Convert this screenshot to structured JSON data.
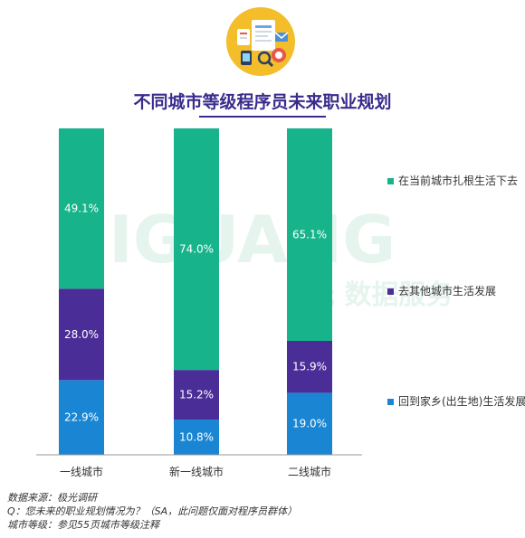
{
  "chart_data": {
    "type": "bar",
    "stacked": true,
    "title": "不同城市等级程序员未来职业规划",
    "categories": [
      "一线城市",
      "新一线城市",
      "二线城市"
    ],
    "series": [
      {
        "name": "回到家乡(出生地)生活发展",
        "values": [
          22.9,
          10.8,
          19.0
        ],
        "color": "#1a86d3"
      },
      {
        "name": "去其他城市生活发展",
        "values": [
          28.0,
          15.2,
          15.9
        ],
        "color": "#4a2d97"
      },
      {
        "name": "在当前城市扎根生活下去",
        "values": [
          49.1,
          74.0,
          65.1
        ],
        "color": "#17b38a"
      }
    ],
    "value_suffix": "%",
    "ylim": [
      0,
      100
    ],
    "legend_position": "right",
    "grid": false
  },
  "legend": {
    "items": [
      {
        "label": "在当前城市扎根生活下去",
        "color": "#17b38a"
      },
      {
        "label": "去其他城市生活发展",
        "color": "#4a2d97"
      },
      {
        "label": "回到家乡(出生地)生活发展",
        "color": "#1a86d3"
      }
    ]
  },
  "watermark": {
    "text_latin": "IGUANG",
    "text_cn": "光 数据服务",
    "color": "#e3f2ec"
  },
  "notes": {
    "source": "数据来源：极光调研",
    "question": "Q：您未来的职业规划情况为？（SA，此问题仅面对程序员群体）",
    "city_level": "城市等级：参见55页城市等级注释"
  },
  "icon": {
    "name": "report-documents-icon",
    "bg_color": "#f3be2a"
  }
}
